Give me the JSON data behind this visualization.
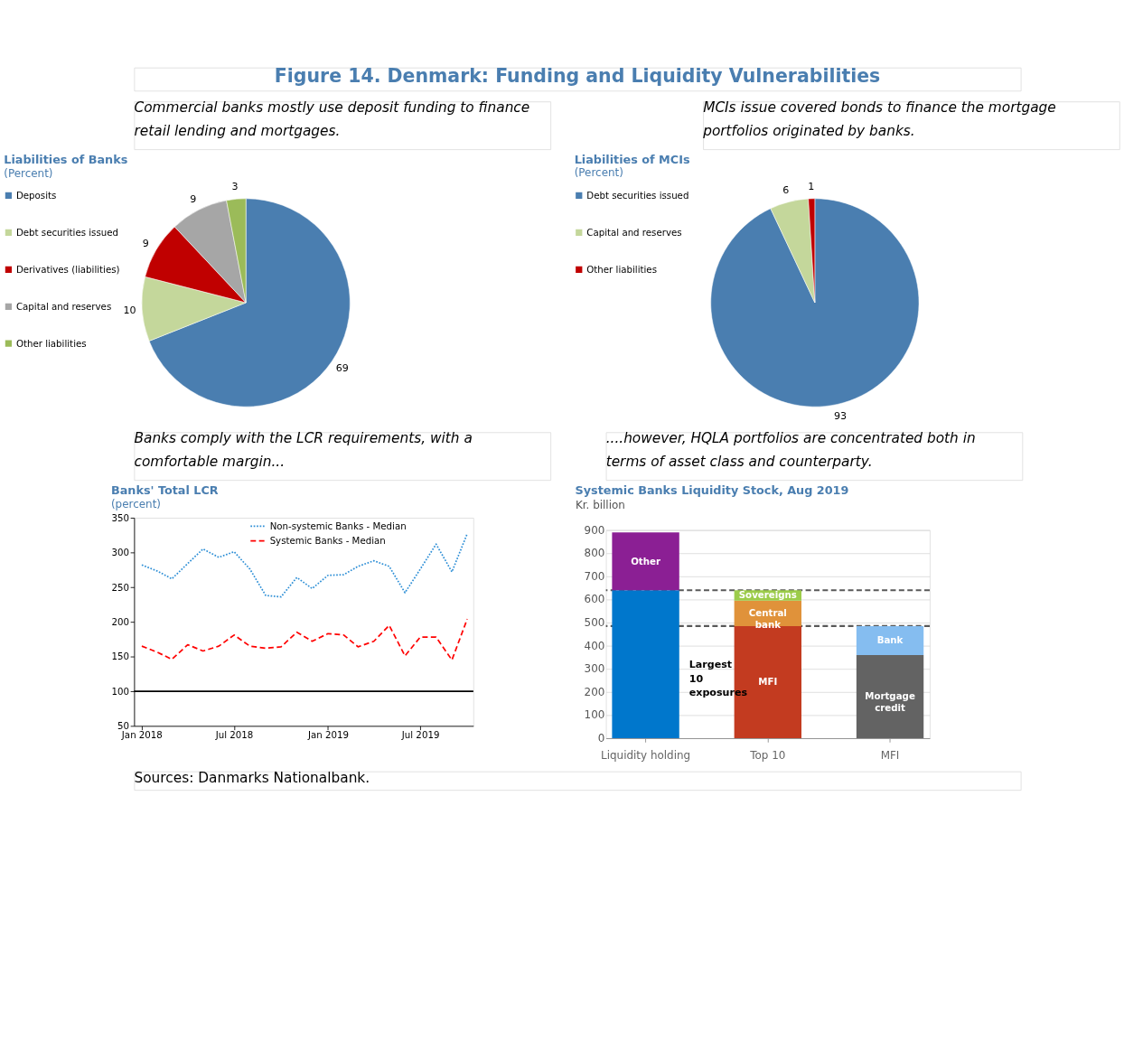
{
  "chart_data": [
    {
      "type": "pie",
      "title": "Liabilities of Banks",
      "subtitle": "(Percent)",
      "annotations": [
        "Figure 14. Denmark: Funding and Liquidity Vulnerabilities",
        "Commercial banks mostly use deposit funding to finance retail lending and mortgages.",
        "Sources: Danmarks Nationalbank."
      ],
      "categories": [
        "Deposits",
        "Debt securities issued",
        "Derivatives (liabilities)",
        "Capital and reserves",
        "Other liabilities"
      ],
      "values": [
        69,
        10,
        9,
        9,
        3
      ],
      "colors": [
        "#4a7eb0",
        "#c4d79b",
        "#c00000",
        "#a6a6a6",
        "#9bbb59"
      ],
      "data_labels": true,
      "legend": "left"
    },
    {
      "type": "pie",
      "title": "Liabilities of MCIs",
      "subtitle": "(Percent)",
      "annotations": [
        "MCIs issue covered bonds to finance the mortgage portfolios originated by banks."
      ],
      "categories": [
        "Debt securities issued",
        "Capital and reserves",
        "Other liabilities"
      ],
      "values": [
        93,
        6,
        1
      ],
      "colors": [
        "#4a7eb0",
        "#c4d79b",
        "#c00000"
      ],
      "data_labels": true,
      "legend": "left"
    },
    {
      "type": "line",
      "title": "Banks' Total LCR",
      "subtitle": "(percent)",
      "annotations": [
        "Banks comply with the LCR requirements, with a comfortable margin..."
      ],
      "x": [
        "2018-01",
        "2018-02",
        "2018-03",
        "2018-04",
        "2018-05",
        "2018-06",
        "2018-07",
        "2018-08",
        "2018-09",
        "2018-10",
        "2018-11",
        "2018-12",
        "2019-01",
        "2019-02",
        "2019-03",
        "2019-04",
        "2019-05",
        "2019-06",
        "2019-07",
        "2019-08",
        "2019-09",
        "2019-10"
      ],
      "xlim": [
        "2017-12-17",
        "2019-10-13"
      ],
      "xticks": [
        {
          "value": "2018-01",
          "label": "Jan 2018"
        },
        {
          "value": "2018-07",
          "label": "Jul 2018"
        },
        {
          "value": "2019-01",
          "label": "Jan 2019"
        },
        {
          "value": "2019-07",
          "label": "Jul 2019"
        }
      ],
      "ylim": [
        50,
        350
      ],
      "yticks": [
        50,
        100,
        150,
        200,
        250,
        300,
        350
      ],
      "series": [
        {
          "name": "Non-systemic Banks - Median",
          "color": "#2e8fd6",
          "line_style": "dotted",
          "values": [
            282,
            273,
            262,
            284,
            305,
            293,
            301,
            276,
            238,
            236,
            264,
            248,
            267,
            268,
            280,
            288,
            280,
            242,
            276,
            312,
            272,
            327
          ]
        },
        {
          "name": "Systemic Banks - Median",
          "color": "#ff0000",
          "line_style": "dashed",
          "values": [
            165,
            156,
            146,
            167,
            158,
            165,
            181,
            165,
            162,
            164,
            185,
            172,
            183,
            181,
            164,
            172,
            195,
            151,
            178,
            178,
            145,
            204
          ]
        }
      ],
      "ref_lines": [
        {
          "axis": "y",
          "value": 100,
          "color": "#000000",
          "line_style": "solid"
        }
      ],
      "legend": "top",
      "grid": false,
      "marker": "none"
    },
    {
      "type": "bar",
      "stacked": true,
      "title": "Systemic Banks Liquidity Stock, Aug 2019",
      "ylabel": "Kr. billion",
      "annotations": [
        "....however, HQLA portfolios are concentrated both in terms of asset class and counterparty.",
        "Largest 10 exposures"
      ],
      "categories": [
        "Liquidity holding",
        "Top 10",
        "MFI"
      ],
      "ylim": [
        0,
        900
      ],
      "yticks": [
        0,
        100,
        200,
        300,
        400,
        500,
        600,
        700,
        800,
        900
      ],
      "grid": "y",
      "series": [
        {
          "color": "#0077cc",
          "values": [
            640,
            null,
            null
          ]
        },
        {
          "name": "Other",
          "color": "#8b1f94",
          "values": [
            250,
            null,
            null
          ]
        },
        {
          "name": "MFI",
          "color": "#c33b20",
          "values": [
            null,
            485,
            null
          ]
        },
        {
          "name": "Central bank",
          "color": "#e0923a",
          "values": [
            null,
            110,
            null
          ]
        },
        {
          "name": "Sovereigns",
          "color": "#9ccc4a",
          "values": [
            null,
            45,
            null
          ]
        },
        {
          "name": "Mortgage credit",
          "color": "#636363",
          "values": [
            null,
            null,
            360
          ]
        },
        {
          "name": "Bank",
          "color": "#85bdf0",
          "values": [
            null,
            null,
            125
          ]
        }
      ],
      "ref_lines": [
        {
          "axis": "y",
          "value": 640,
          "color": "#595959",
          "line_style": "dashed"
        },
        {
          "axis": "y",
          "value": 485,
          "color": "#595959",
          "line_style": "dashed"
        }
      ]
    }
  ]
}
